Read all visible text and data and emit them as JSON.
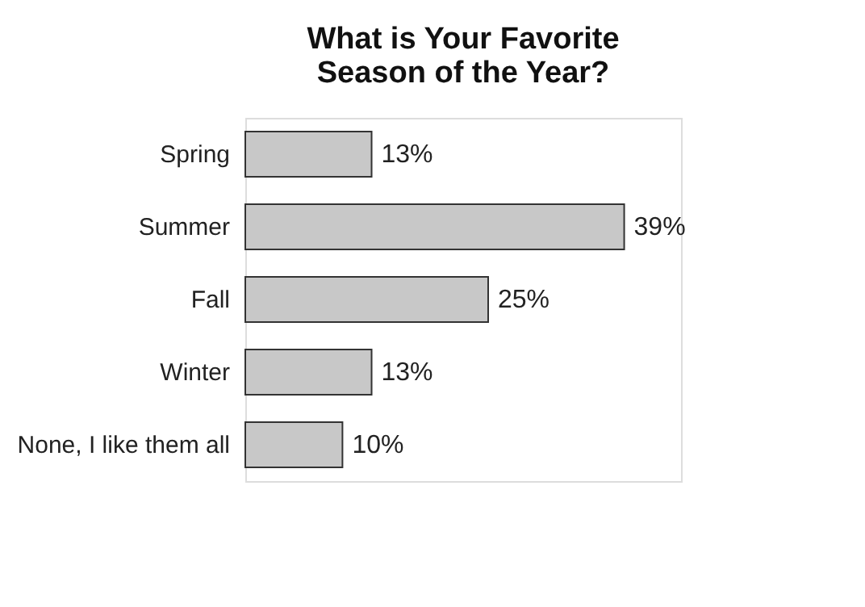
{
  "chart_data": {
    "type": "bar",
    "orientation": "horizontal",
    "title": "What is Your Favorite\nSeason of the Year?",
    "categories": [
      "Spring",
      "Summer",
      "Fall",
      "Winter",
      "None, I like them all"
    ],
    "values": [
      13,
      39,
      25,
      13,
      10
    ],
    "value_labels": [
      "13%",
      "39%",
      "25%",
      "13%",
      "10%"
    ],
    "color": "#c8c8c8"
  }
}
